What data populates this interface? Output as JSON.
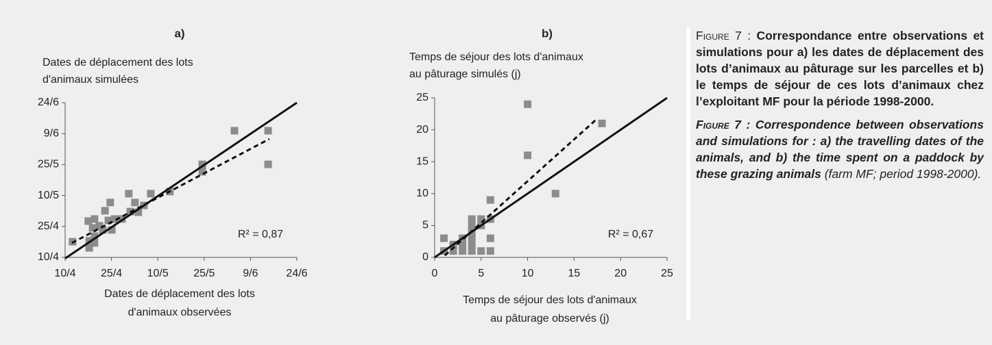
{
  "chart_data": [
    {
      "type": "scatter",
      "title": "a)",
      "ylabel": [
        "Dates de déplacement des lots",
        "d'animaux simulées"
      ],
      "xlabel": [
        "Dates de déplacement des lots",
        "d'animaux observées"
      ],
      "annotation": "R² = 0,87",
      "xlim": [
        100,
        175
      ],
      "ylim": [
        100,
        175
      ],
      "xticks": [
        {
          "value": 100,
          "label": "10/4"
        },
        {
          "value": 115,
          "label": "25/4"
        },
        {
          "value": 130,
          "label": "10/5"
        },
        {
          "value": 145,
          "label": "25/5"
        },
        {
          "value": 160,
          "label": "9/6"
        },
        {
          "value": 175,
          "label": "24/6"
        }
      ],
      "yticks": [
        {
          "value": 100,
          "label": "10/4"
        },
        {
          "value": 115,
          "label": "25/4"
        },
        {
          "value": 130,
          "label": "10/5"
        },
        {
          "value": 145,
          "label": "25/5"
        },
        {
          "value": 160,
          "label": "9/6"
        },
        {
          "value": 175,
          "label": "24/6"
        }
      ],
      "color": "#8c8c8c",
      "marker": "square",
      "x": [
        102.4,
        107.5,
        107.8,
        107.8,
        108.9,
        109.5,
        109.5,
        109.5,
        111.1,
        112.2,
        112.9,
        114.0,
        114.6,
        115.1,
        116.0,
        118.4,
        120.6,
        121.1,
        122.6,
        123.7,
        125.5,
        127.7,
        133.9,
        144.4,
        144.4,
        154.8,
        165.7,
        165.7
      ],
      "y": [
        107.6,
        117.6,
        108.0,
        104.6,
        114.3,
        118.6,
        110.3,
        107.0,
        115.3,
        113.3,
        122.6,
        117.9,
        126.6,
        113.3,
        118.6,
        118.6,
        130.9,
        122.2,
        126.6,
        121.9,
        125.2,
        130.9,
        131.9,
        145.1,
        141.5,
        161.4,
        161.4,
        145.1
      ],
      "lines": [
        {
          "style": "solid",
          "x": [
            100,
            175
          ],
          "y": [
            99.5,
            175
          ]
        },
        {
          "style": "dashed",
          "x": [
            102.2,
            166.1
          ],
          "y": [
            107,
            157.4
          ]
        }
      ]
    },
    {
      "type": "scatter",
      "title": "b)",
      "ylabel": [
        "Temps de séjour des lots d'animaux",
        "au pâturage simulés (j)"
      ],
      "xlabel": [
        "Temps de séjour des lots d'animaux",
        "au pâturage observés (j)"
      ],
      "annotation": "R² = 0,67",
      "xlim": [
        0,
        25
      ],
      "ylim": [
        0,
        25
      ],
      "xticks": [
        0,
        5,
        10,
        15,
        20,
        25
      ],
      "yticks": [
        0,
        5,
        10,
        15,
        20,
        25
      ],
      "color": "#8c8c8c",
      "marker": "square",
      "x": [
        1,
        1,
        2,
        2,
        3,
        3,
        3,
        4,
        4,
        4,
        4,
        4,
        4,
        5,
        5,
        5,
        6,
        6,
        6,
        6,
        10,
        10,
        13,
        18
      ],
      "y": [
        3,
        1,
        1,
        2,
        1,
        3,
        2,
        1,
        2,
        3,
        4,
        5,
        6,
        1,
        5,
        6,
        1,
        3,
        6,
        9,
        16,
        24,
        10,
        21
      ],
      "lines": [
        {
          "style": "solid",
          "x": [
            0,
            25
          ],
          "y": [
            0,
            25
          ]
        },
        {
          "style": "dashed",
          "x": [
            1.1,
            17.3
          ],
          "y": [
            0.3,
            21.5
          ]
        }
      ]
    }
  ],
  "caption": {
    "fr_label": "Figure 7 :",
    "fr_text": "Correspondance entre observations et simulations pour a) les dates de déplacement des lots d’animaux au pâturage sur les parcelles et b) le temps de séjour de ces lots d’animaux chez l’exploitant MF pour la période 1998-2000.",
    "en_label": "Figure 7 :",
    "en_text": "Correspondence between observations and simulations for : a) the travelling dates of the animals, and b) the time spent on a paddock by these grazing animals",
    "en_note": "(farm MF; period 1998-2000)."
  }
}
